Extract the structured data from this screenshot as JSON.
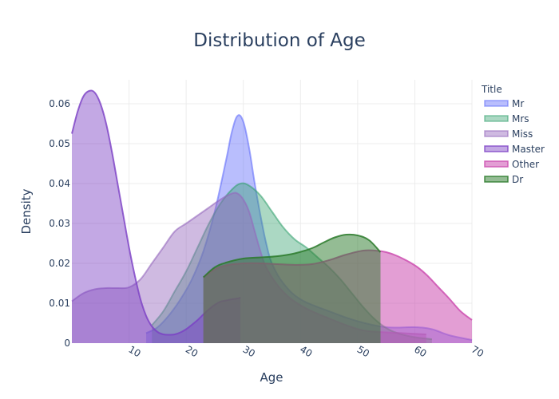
{
  "chart_data": {
    "type": "area",
    "title": "Distribution of Age",
    "xlabel": "Age",
    "ylabel": "Density",
    "xlim": [
      0,
      70
    ],
    "ylim": [
      0,
      0.066
    ],
    "x_ticks": [
      10,
      20,
      30,
      40,
      50,
      60,
      70
    ],
    "y_ticks": [
      0,
      0.01,
      0.02,
      0.03,
      0.04,
      0.05,
      0.06
    ],
    "y_tick_labels": [
      "0",
      "0.01",
      "0.02",
      "0.03",
      "0.04",
      "0.05",
      "0.06"
    ],
    "grid": true,
    "legend": {
      "title": "Title",
      "placement": "top-right"
    },
    "series": [
      {
        "name": "Mr",
        "color": "#636efa",
        "fill_opacity": 0.45,
        "line_opacity": 0.6,
        "points": [
          [
            13,
            0.0025
          ],
          [
            15,
            0.004
          ],
          [
            17,
            0.007
          ],
          [
            19,
            0.011
          ],
          [
            21,
            0.016
          ],
          [
            23,
            0.023
          ],
          [
            25,
            0.033
          ],
          [
            27,
            0.046
          ],
          [
            28,
            0.053
          ],
          [
            29,
            0.057
          ],
          [
            30,
            0.0555
          ],
          [
            31,
            0.049
          ],
          [
            32,
            0.04
          ],
          [
            33,
            0.032
          ],
          [
            34,
            0.025
          ],
          [
            35,
            0.02
          ],
          [
            37,
            0.015
          ],
          [
            40,
            0.011
          ],
          [
            45,
            0.008
          ],
          [
            50,
            0.0055
          ],
          [
            55,
            0.004
          ],
          [
            60,
            0.004
          ],
          [
            63,
            0.0035
          ],
          [
            66,
            0.002
          ],
          [
            70,
            0.0008
          ]
        ]
      },
      {
        "name": "Mrs",
        "color": "#2e9e6a",
        "fill_opacity": 0.4,
        "line_opacity": 0.55,
        "points": [
          [
            14,
            0.0045
          ],
          [
            16,
            0.008
          ],
          [
            18,
            0.013
          ],
          [
            20,
            0.018
          ],
          [
            22,
            0.024
          ],
          [
            24,
            0.03
          ],
          [
            26,
            0.035
          ],
          [
            28,
            0.0385
          ],
          [
            29.5,
            0.04
          ],
          [
            31,
            0.0395
          ],
          [
            33,
            0.037
          ],
          [
            35,
            0.033
          ],
          [
            37,
            0.029
          ],
          [
            39,
            0.026
          ],
          [
            41,
            0.024
          ],
          [
            43,
            0.0215
          ],
          [
            45,
            0.019
          ],
          [
            47,
            0.016
          ],
          [
            49,
            0.0125
          ],
          [
            51,
            0.009
          ],
          [
            53,
            0.006
          ],
          [
            55,
            0.0038
          ],
          [
            57,
            0.0025
          ],
          [
            60,
            0.0015
          ],
          [
            63,
            0.001
          ]
        ]
      },
      {
        "name": "Miss",
        "color": "#9467bd",
        "fill_opacity": 0.45,
        "line_opacity": 0.6,
        "points": [
          [
            0,
            0.0105
          ],
          [
            2,
            0.0125
          ],
          [
            4,
            0.0135
          ],
          [
            6,
            0.0138
          ],
          [
            8,
            0.0138
          ],
          [
            10,
            0.014
          ],
          [
            12,
            0.016
          ],
          [
            14,
            0.02
          ],
          [
            16,
            0.024
          ],
          [
            18,
            0.028
          ],
          [
            20,
            0.03
          ],
          [
            22,
            0.032
          ],
          [
            24,
            0.034
          ],
          [
            26,
            0.036
          ],
          [
            28,
            0.0375
          ],
          [
            29,
            0.0375
          ],
          [
            30,
            0.036
          ],
          [
            31,
            0.033
          ],
          [
            32,
            0.028
          ],
          [
            33,
            0.023
          ],
          [
            34,
            0.019
          ],
          [
            36,
            0.0145
          ],
          [
            38,
            0.0115
          ],
          [
            40,
            0.0095
          ],
          [
            42,
            0.008
          ],
          [
            45,
            0.0062
          ],
          [
            48,
            0.0045
          ],
          [
            51,
            0.0032
          ],
          [
            54,
            0.0028
          ],
          [
            58,
            0.0025
          ],
          [
            62,
            0.0022
          ]
        ]
      },
      {
        "name": "Master",
        "color": "#7b3fc4",
        "fill_opacity": 0.45,
        "line_opacity": 0.8,
        "points": [
          [
            0,
            0.0525
          ],
          [
            1,
            0.058
          ],
          [
            2,
            0.0618
          ],
          [
            3,
            0.0632
          ],
          [
            4,
            0.0628
          ],
          [
            5,
            0.06
          ],
          [
            6,
            0.055
          ],
          [
            7,
            0.048
          ],
          [
            8,
            0.04
          ],
          [
            9,
            0.032
          ],
          [
            10,
            0.024
          ],
          [
            11,
            0.017
          ],
          [
            12,
            0.011
          ],
          [
            13,
            0.0068
          ],
          [
            14,
            0.0042
          ],
          [
            15,
            0.0028
          ],
          [
            16,
            0.0022
          ],
          [
            17,
            0.0021
          ],
          [
            18,
            0.0022
          ],
          [
            19,
            0.0027
          ],
          [
            20,
            0.0035
          ],
          [
            21,
            0.0046
          ],
          [
            22,
            0.0058
          ],
          [
            23,
            0.0072
          ],
          [
            24,
            0.0085
          ],
          [
            25,
            0.0096
          ],
          [
            26,
            0.0104
          ],
          [
            27,
            0.0107
          ],
          [
            28,
            0.011
          ],
          [
            29,
            0.0112
          ],
          [
            29.5,
            0.0114
          ]
        ]
      },
      {
        "name": "Other",
        "color": "#cc4fb0",
        "fill_opacity": 0.55,
        "line_opacity": 0.85,
        "points": [
          [
            23,
            0.0165
          ],
          [
            25,
            0.0185
          ],
          [
            27,
            0.0195
          ],
          [
            30,
            0.02
          ],
          [
            33,
            0.02
          ],
          [
            36,
            0.0198
          ],
          [
            39,
            0.0196
          ],
          [
            42,
            0.0198
          ],
          [
            45,
            0.0208
          ],
          [
            48,
            0.0222
          ],
          [
            51,
            0.0232
          ],
          [
            53,
            0.0232
          ],
          [
            55,
            0.0228
          ],
          [
            57,
            0.0218
          ],
          [
            60,
            0.0195
          ],
          [
            62,
            0.0172
          ],
          [
            64,
            0.0142
          ],
          [
            66,
            0.0112
          ],
          [
            68,
            0.008
          ],
          [
            70,
            0.0058
          ]
        ]
      },
      {
        "name": "Dr",
        "color": "#2a7a2a",
        "fill_opacity": 0.5,
        "line_opacity": 0.85,
        "points": [
          [
            23,
            0.0165
          ],
          [
            25,
            0.019
          ],
          [
            27,
            0.0202
          ],
          [
            30,
            0.0212
          ],
          [
            33,
            0.0215
          ],
          [
            36,
            0.0218
          ],
          [
            39,
            0.0225
          ],
          [
            42,
            0.0238
          ],
          [
            44,
            0.0252
          ],
          [
            46,
            0.0265
          ],
          [
            48,
            0.0272
          ],
          [
            50,
            0.027
          ],
          [
            52,
            0.0258
          ],
          [
            54,
            0.0228
          ]
        ]
      }
    ]
  }
}
